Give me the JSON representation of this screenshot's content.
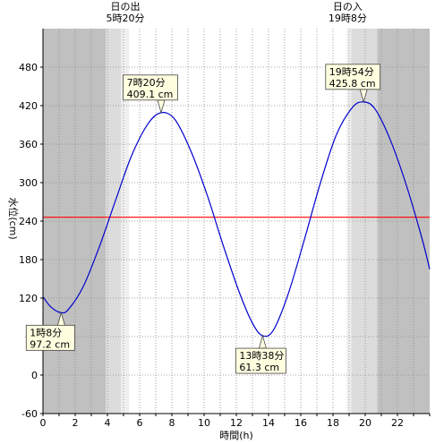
{
  "chart_data": {
    "type": "line",
    "xlabel": "時間(h)",
    "ylabel": "水位(cm)",
    "xlim": [
      0,
      24
    ],
    "ylim": [
      -60,
      540
    ],
    "xticks": [
      0,
      2,
      4,
      6,
      8,
      10,
      12,
      14,
      16,
      18,
      20,
      22
    ],
    "yticks": [
      -60,
      0,
      60,
      120,
      180,
      240,
      300,
      360,
      420,
      480
    ],
    "grid": true,
    "reference_line": {
      "y": 246,
      "color": "#ff0000"
    },
    "series": [
      {
        "color": "#0000cc",
        "x": [
          0,
          0.5,
          1.133,
          1.6,
          2.5,
          3.5,
          4.5,
          5.5,
          6.5,
          7.333,
          8.2,
          9.2,
          10.2,
          11.2,
          12.2,
          13,
          13.633,
          14.3,
          15.2,
          16.2,
          17.2,
          18.2,
          19.2,
          19.9,
          20.6,
          21.5,
          22.5,
          23.5,
          24
        ],
        "y": [
          122,
          106,
          97.2,
          103,
          138,
          200,
          272,
          342,
          391,
          409.1,
          398,
          348,
          280,
          201,
          128,
          81,
          61.3,
          70,
          125,
          209,
          298,
          374,
          417,
          425.8,
          415,
          370,
          300,
          215,
          165
        ]
      }
    ],
    "shaded_regions": [
      {
        "from": 0,
        "to": 3.9,
        "color": "#c0c0c0"
      },
      {
        "from": 3.9,
        "to": 4.85,
        "color": "#dcdcdc"
      },
      {
        "from": 4.85,
        "to": 5.333,
        "color": "#efefef"
      },
      {
        "from": 18.85,
        "to": 19.133,
        "color": "#efefef"
      },
      {
        "from": 19.133,
        "to": 20.75,
        "color": "#dcdcdc"
      },
      {
        "from": 20.75,
        "to": 24,
        "color": "#c0c0c0"
      }
    ],
    "sun_labels": [
      {
        "x": 5.333,
        "line1": "日の出",
        "line2": "5時20分"
      },
      {
        "x": 19.133,
        "line1": "日の入",
        "line2": "19時8分"
      }
    ],
    "annotations": [
      {
        "x": 1.133,
        "y": 97.2,
        "position": "below",
        "line1": "1時8分",
        "line2": "97.2 cm"
      },
      {
        "x": 7.333,
        "y": 409.1,
        "position": "above",
        "line1": "7時20分",
        "line2": "409.1 cm"
      },
      {
        "x": 13.633,
        "y": 61.3,
        "position": "below",
        "line1": "13時38分",
        "line2": "61.3 cm"
      },
      {
        "x": 19.9,
        "y": 425.8,
        "position": "above",
        "line1": "19時54分",
        "line2": "425.8 cm"
      }
    ]
  }
}
